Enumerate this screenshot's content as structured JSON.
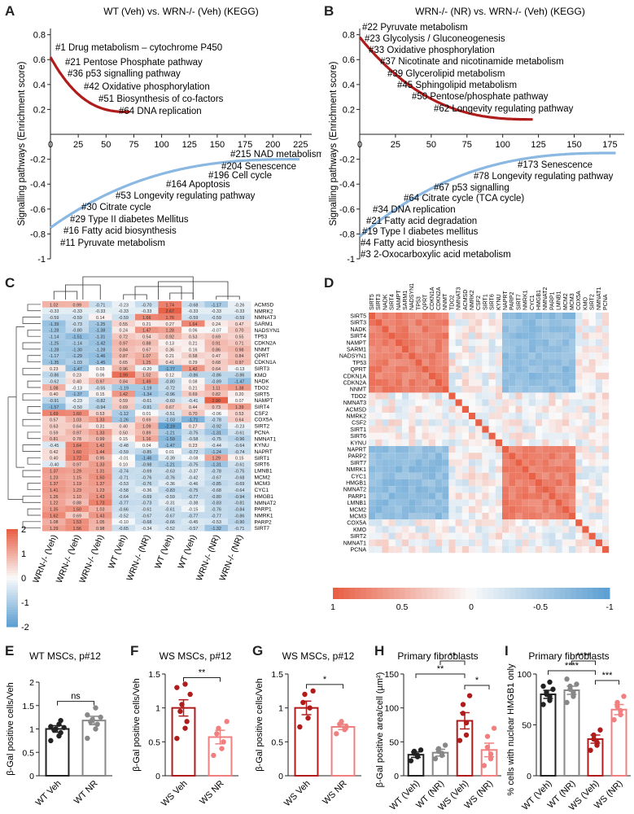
{
  "panels": {
    "A": {
      "label": "A",
      "title": "WT (Veh) vs. WRN-/- (Veh) (KEGG)",
      "ylabel": "Signalling pathways (Enrichment score)"
    },
    "B": {
      "label": "B",
      "title": "WRN-/- (NR) vs. WRN-/- (Veh) (KEGG)",
      "ylabel": "Signalling pathways (Enrichment score)"
    },
    "C": {
      "label": "C"
    },
    "D": {
      "label": "D"
    },
    "E": {
      "label": "E",
      "title": "WT MSCs, p#12",
      "ylabel": "β-Gal positive cells/Veh"
    },
    "F": {
      "label": "F",
      "title": "WS MSCs, p#12",
      "ylabel": "β-Gal positive cells/Veh"
    },
    "G": {
      "label": "G",
      "title": "WS MSCs, p#12",
      "ylabel": "β-Gal positive cells/Veh"
    },
    "H": {
      "label": "H",
      "title": "Primary fibroblasts",
      "ylabel": "β-Gal positive area/cell (µm²)"
    },
    "I": {
      "label": "I",
      "title": "Primary fibroblasts",
      "ylabel": "% cells with nuclear HMGB1 only"
    }
  },
  "chart_data": [
    {
      "id": "A",
      "type": "line",
      "title": "WT (Veh) vs. WRN-/- (Veh) (KEGG)",
      "ylabel": "Signalling pathways (Enrichment score)",
      "xticks": [
        0,
        25,
        50,
        75,
        100,
        125,
        150,
        175,
        200,
        225
      ],
      "yticks": [
        -1,
        -0.8,
        -0.6,
        -0.4,
        -0.2,
        0.2,
        0.4,
        0.6,
        0.8
      ],
      "ylim": [
        -1,
        0.85
      ],
      "xlim": [
        0,
        235
      ],
      "series": [
        {
          "sign": "positive",
          "color": "#b01c1c",
          "n": 72,
          "start": 0.62,
          "end": 0.18
        },
        {
          "sign": "negative",
          "color": "#8ab8e2",
          "n": 225,
          "start": -0.75,
          "end": -0.2
        }
      ],
      "annotations_pos": [
        "#1 Drug metabolism – cytochrome P450",
        "#21 Pentose Phosphate pathway",
        "#36 p53 signalling pathway",
        "#42 Oxidative phosphorylation",
        "#51 Biosynthesis of co-factors",
        "#64 DNA replication"
      ],
      "annotations_neg": [
        "#215 NAD metabolism",
        "#204 Senescence",
        "#196 Cell cycle",
        "#164 Apoptosis",
        "#53 Longevity regulating pathway",
        "#30 Citrate cycle",
        "#29 Type II diabetes Mellitus",
        "#16 Fatty acid biosynthesis",
        "#11 Pyruvate metabolism"
      ]
    },
    {
      "id": "B",
      "type": "line",
      "title": "WRN-/- (NR) vs. WRN-/- (Veh) (KEGG)",
      "ylabel": "Signalling pathways (Enrichment score)",
      "xticks": [
        0,
        25,
        50,
        75,
        100,
        125,
        150,
        175
      ],
      "yticks": [
        -1,
        -0.8,
        -0.6,
        -0.4,
        -0.2,
        0.2,
        0.4,
        0.6,
        0.8
      ],
      "ylim": [
        -1,
        0.85
      ],
      "xlim": [
        0,
        185
      ],
      "series": [
        {
          "sign": "positive",
          "color": "#b01c1c",
          "n": 122,
          "start": 0.78,
          "end": 0.12
        },
        {
          "sign": "negative",
          "color": "#8ab8e2",
          "n": 180,
          "start": -0.82,
          "end": -0.15
        }
      ],
      "annotations_pos": [
        "#22 Pyruvate metabolism",
        "#23 Glycolysis / Gluconeogenesis",
        "#33 Oxidative phosphorylation",
        "#37 Nicotinate and nicotinamide metabolism",
        "#39 Glycerolipid metabolism",
        "#45 Sphingolipid metabolism",
        "#50 Pentose/phosphate pathway",
        "#62 Longevity regulating pathway"
      ],
      "annotations_neg": [
        "#173 Senescence",
        "#78 Longevity regulating pathway",
        "#67 p53 signalling",
        "#64 Citrate cycle (TCA cycle)",
        "#34 DNA replication",
        "#21 Fatty acid degradation",
        "#19 Type I diabetes mellitus",
        "#4 Fatty acid biosynthesis",
        "#3 2-Oxocarboxylic acid metabolism"
      ]
    },
    {
      "id": "C",
      "type": "heatmap",
      "columns": [
        "WRN-/- (Veh)",
        "WRN-/- (Veh)",
        "WRN-/- (Veh)",
        "WT (Veh)",
        "WRN-/- (NR)",
        "WT (Veh)",
        "WT (Veh)",
        "WRN-/- (NR)",
        "WRN-/- (NR)"
      ],
      "rows": [
        "ACMSD",
        "NMRK2",
        "NMNAT3",
        "SARM1",
        "NADSYN1",
        "TP53",
        "CDKN2A",
        "NNMT",
        "QPRT",
        "CDKN1A",
        "SIRT3",
        "KMO",
        "NADK",
        "TDO2",
        "SIRT5",
        "NAMPT",
        "SIRT4",
        "CSF2",
        "COX5A",
        "SIRT2",
        "PCNA",
        "NMNAT1",
        "KYNU",
        "NAPRT",
        "SIRT1",
        "SIRT6",
        "LMNB1",
        "MCM2",
        "MCM3",
        "CYC1",
        "HMGB1",
        "NMNAT2",
        "PARP1",
        "NMRK1",
        "PARP2",
        "SIRT7"
      ],
      "values": [
        [
          1.02,
          0.99,
          -0.71,
          -0.23,
          -0.7,
          1.74,
          -0.68,
          -1.17,
          -0.26
        ],
        [
          -0.33,
          -0.33,
          -0.33,
          -0.33,
          -0.33,
          2.67,
          -0.33,
          -0.33,
          -0.33
        ],
        [
          -0.59,
          -0.59,
          0.14,
          -0.59,
          1.66,
          1.76,
          -0.59,
          -0.59,
          -0.59
        ],
        [
          -1.39,
          -0.73,
          -1.25,
          0.55,
          0.21,
          0.27,
          1.64,
          0.24,
          0.47
        ],
        [
          -1.28,
          -0.8,
          -1.38,
          0.24,
          1.47,
          1.28,
          0.06,
          -0.07,
          0.7
        ],
        [
          -1.14,
          -1.51,
          -1.31,
          0.72,
          0.54,
          0.92,
          0.53,
          0.69,
          0.55
        ],
        [
          -1.25,
          -1.14,
          -1.42,
          0.97,
          0.88,
          0.13,
          0.21,
          0.91,
          0.71
        ],
        [
          -1.28,
          -1.3,
          -1.28,
          0.84,
          0.67,
          0.36,
          0.16,
          0.86,
          0.98
        ],
        [
          -1.17,
          -1.29,
          -1.46,
          0.87,
          1.07,
          0.21,
          0.58,
          0.47,
          0.84
        ],
        [
          -1.35,
          -1.03,
          -1.45,
          0.65,
          1.25,
          0.41,
          0.29,
          0.68,
          0.97
        ],
        [
          0.23,
          -1.47,
          0.03,
          0.96,
          -0.2,
          -1.77,
          1.42,
          0.64,
          -0.13
        ],
        [
          -0.86,
          0.23,
          0.06,
          1.99,
          1.02,
          0.12,
          -0.86,
          -0.86,
          -0.86
        ],
        [
          -0.62,
          0.4,
          0.97,
          0.84,
          1.49,
          -0.8,
          0.08,
          -0.89,
          -1.47
        ],
        [
          1.08,
          -0.13,
          -0.55,
          -1.19,
          -1.19,
          -0.72,
          0.21,
          1.11,
          1.38
        ],
        [
          0.4,
          -1.37,
          0.15,
          1.42,
          -1.34,
          -0.96,
          0.69,
          0.82,
          0.2
        ],
        [
          -0.91,
          -0.23,
          -0.82,
          0.59,
          -0.61,
          -0.6,
          -0.41,
          2.9,
          0.07
        ],
        [
          -1.57,
          -0.5,
          -0.94,
          0.69,
          -0.91,
          0.67,
          0.44,
          0.73,
          1.39
        ],
        [
          1.69,
          1.6,
          0.53,
          -1.12,
          0.01,
          -0.51,
          0.7,
          -0.06,
          0.53
        ],
        [
          0.57,
          1.03,
          1.33,
          -1.26,
          0.69,
          -1.03,
          -1.71,
          -0.78,
          0.64
        ],
        [
          0.63,
          0.64,
          0.31,
          0.4,
          1.09,
          -2.19,
          0.27,
          -0.92,
          -0.23
        ],
        [
          0.59,
          0.97,
          1.33,
          0.5,
          0.89,
          -1.21,
          -0.75,
          -1.31,
          -0.61
        ],
        [
          0.81,
          0.78,
          0.99,
          0.15,
          1.16,
          -1.59,
          -0.58,
          -0.75,
          -0.96
        ],
        [
          -0.45,
          1.64,
          1.42,
          -0.48,
          0.04,
          -1.47,
          0.23,
          -0.44,
          -0.64
        ],
        [
          0.42,
          1.6,
          1.44,
          -0.59,
          -0.85,
          0.01,
          -0.72,
          -1.24,
          -0.74
        ],
        [
          0.4,
          1.72,
          0.95,
          -0.01,
          -1.46,
          -0.39,
          -0.08,
          1.29,
          0.15
        ],
        [
          -0.4,
          0.97,
          1.33,
          0.1,
          -0.98,
          -1.21,
          -0.75,
          -1.31,
          -0.61
        ],
        [
          1.37,
          1.29,
          1.31,
          -0.74,
          -0.69,
          -0.63,
          -0.37,
          -0.78,
          -0.75
        ],
        [
          1.23,
          1.15,
          1.5,
          -0.71,
          -0.76,
          -0.76,
          -0.42,
          -0.67,
          -0.68
        ],
        [
          1.37,
          1.19,
          1.37,
          -0.53,
          -0.76,
          -0.36,
          -0.46,
          -0.85,
          -0.69
        ],
        [
          1.41,
          1.23,
          1.23,
          -0.58,
          -0.36,
          -0.83,
          -0.75,
          -0.68,
          -0.64
        ],
        [
          1.26,
          1.1,
          1.43,
          -0.64,
          -0.69,
          -0.59,
          -0.77,
          -0.8,
          -0.94
        ],
        [
          1.22,
          0.88,
          1.73,
          -0.77,
          -0.73,
          -0.31,
          -0.38,
          -0.83,
          -0.81
        ],
        [
          1.35,
          1.5,
          1.03,
          -0.66,
          -0.61,
          -0.61,
          -0.15,
          -0.76,
          -0.84
        ],
        [
          1.62,
          0.69,
          1.43,
          -0.52,
          -0.67,
          -0.67,
          -0.77,
          -0.77,
          -0.86
        ],
        [
          1.08,
          1.53,
          1.05,
          -0.1,
          -0.68,
          -0.66,
          -0.45,
          -0.53,
          -0.9
        ],
        [
          1.29,
          1.56,
          0.98,
          -0.65,
          -0.34,
          -0.52,
          -0.57,
          -1.32,
          -0.71
        ]
      ],
      "scale_ticks": [
        "2",
        "1",
        "0",
        "-1",
        "-2"
      ]
    },
    {
      "id": "D",
      "type": "heatmap",
      "genes": [
        "SIRT5",
        "SIRT3",
        "NADK",
        "SIRT4",
        "NAMPT",
        "SARM1",
        "NADSYN1",
        "TP53",
        "QPRT",
        "CDKN1A",
        "CDKN2A",
        "NNMT",
        "TDO2",
        "NMNAT3",
        "ACMSD",
        "NMRK2",
        "CSF2",
        "SIRT1",
        "SIRT6",
        "KYNU",
        "NAPRT",
        "PARP2",
        "SIRT7",
        "NMRK1",
        "CYC1",
        "HMGB1",
        "NMNAT2",
        "PARP1",
        "LMNB1",
        "MCM2",
        "MCM3",
        "COX5A",
        "KMO",
        "SIRT2",
        "NMNAT1",
        "PCNA"
      ],
      "blocks": [
        {
          "from": 0,
          "to": 11
        },
        {
          "from": 20,
          "to": 30
        }
      ],
      "scale_ticks": [
        "1",
        "0.5",
        "0",
        "-0.5",
        "-1"
      ]
    },
    {
      "id": "E",
      "type": "bar",
      "title": "WT MSCs, p#12",
      "ylabel": "β-Gal positive cells/Veh",
      "categories": [
        "WT Veh",
        "WT NR"
      ],
      "values": [
        1.0,
        1.18
      ],
      "errors": [
        0.07,
        0.09
      ],
      "points": [
        [
          0.75,
          0.85,
          0.92,
          0.98,
          1.0,
          1.03,
          1.05,
          1.1,
          1.18
        ],
        [
          0.8,
          1.0,
          1.1,
          1.15,
          1.2,
          1.25,
          1.3,
          1.45
        ]
      ],
      "colors": [
        "#222222",
        "#888888"
      ],
      "ylim": [
        0,
        2.0
      ],
      "yticks": [
        0,
        0.5,
        1.0,
        1.5,
        2.0
      ],
      "sig": "ns"
    },
    {
      "id": "F",
      "type": "bar",
      "title": "WS MSCs, p#12",
      "ylabel": "β-Gal positive cells/Veh",
      "categories": [
        "WS Veh",
        "WS NR"
      ],
      "values": [
        1.0,
        0.57
      ],
      "errors": [
        0.12,
        0.1
      ],
      "points": [
        [
          0.55,
          0.7,
          0.8,
          0.95,
          1.05,
          1.2,
          1.3,
          1.35
        ],
        [
          0.3,
          0.4,
          0.5,
          0.62,
          0.7,
          0.8
        ]
      ],
      "colors": [
        "#b01c1c",
        "#f08080"
      ],
      "ylim": [
        0,
        1.5
      ],
      "yticks": [
        0,
        0.5,
        1.0,
        1.5
      ],
      "sig": "**"
    },
    {
      "id": "G",
      "type": "bar",
      "title": "WS MSCs, p#12",
      "ylabel": "β-Gal positive cells/Veh",
      "categories": [
        "WS Veh",
        "WS NR"
      ],
      "values": [
        1.0,
        0.72
      ],
      "errors": [
        0.1,
        0.04
      ],
      "points": [
        [
          0.72,
          0.85,
          1.0,
          1.08,
          1.2,
          1.25
        ],
        [
          0.62,
          0.68,
          0.72,
          0.76,
          0.8
        ]
      ],
      "colors": [
        "#b01c1c",
        "#f08080"
      ],
      "ylim": [
        0,
        1.5
      ],
      "yticks": [
        0,
        0.5,
        1.0,
        1.5
      ],
      "sig": "*"
    },
    {
      "id": "H",
      "type": "bar",
      "title": "Primary fibroblasts",
      "ylabel": "β-Gal positive area/cell (µm²)",
      "categories": [
        "WT (Veh)",
        "WT (NR)",
        "WS (Veh)",
        "WS (NR)"
      ],
      "values": [
        31,
        34,
        81,
        38
      ],
      "errors": [
        4,
        5,
        12,
        10
      ],
      "points": [
        [
          22,
          28,
          30,
          33,
          36,
          38
        ],
        [
          25,
          30,
          33,
          36,
          40,
          45
        ],
        [
          52,
          60,
          78,
          92,
          105,
          118
        ],
        [
          15,
          25,
          32,
          42,
          58,
          70
        ]
      ],
      "colors": [
        "#222222",
        "#888888",
        "#b01c1c",
        "#f08080"
      ],
      "ylim": [
        0,
        150
      ],
      "yticks": [
        0,
        50,
        100,
        150
      ],
      "sig": [
        {
          "from": 0,
          "to": 2,
          "label": "**"
        },
        {
          "from": 1,
          "to": 2,
          "label": "**"
        },
        {
          "from": 2,
          "to": 3,
          "label": "*"
        }
      ]
    },
    {
      "id": "I",
      "type": "bar",
      "title": "Primary fibroblasts",
      "ylabel": "% cells with nuclear HMGB1 only",
      "categories": [
        "WT (Veh)",
        "WT (NR)",
        "WS (Veh)",
        "WS (NR)"
      ],
      "values": [
        80,
        84,
        36,
        65
      ],
      "errors": [
        4,
        4,
        4,
        5
      ],
      "points": [
        [
          70,
          74,
          78,
          80,
          82,
          85,
          88,
          92
        ],
        [
          72,
          78,
          82,
          85,
          88,
          90,
          95
        ],
        [
          25,
          30,
          33,
          36,
          40,
          45
        ],
        [
          55,
          60,
          64,
          68,
          72,
          78
        ]
      ],
      "colors": [
        "#222222",
        "#888888",
        "#b01c1c",
        "#f08080"
      ],
      "ylim": [
        0,
        100
      ],
      "yticks": [
        0,
        50,
        100
      ],
      "sig": [
        {
          "from": 0,
          "to": 2,
          "label": "****"
        },
        {
          "from": 1,
          "to": 2,
          "label": "****"
        },
        {
          "from": 2,
          "to": 3,
          "label": "***"
        }
      ]
    }
  ]
}
